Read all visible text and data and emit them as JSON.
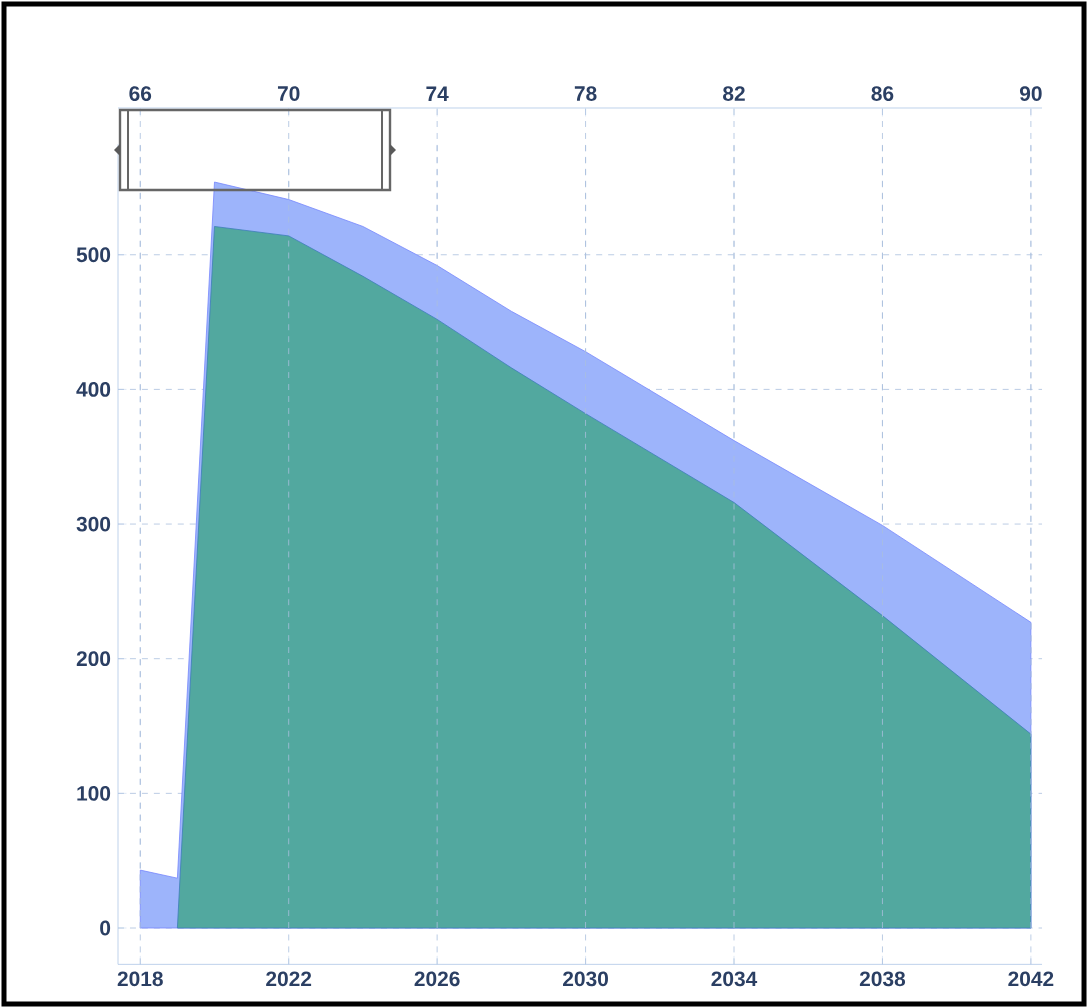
{
  "chart_data": {
    "type": "area",
    "x": [
      2018,
      2019,
      2020,
      2022,
      2024,
      2026,
      2028,
      2030,
      2034,
      2038,
      2042
    ],
    "series": [
      {
        "color": "#9db4fb",
        "values": [
          43,
          37,
          554,
          541,
          521,
          492,
          458,
          428,
          362,
          299,
          227
        ]
      },
      {
        "color": "#52a89f",
        "values": [
          null,
          0,
          521,
          514,
          484,
          452,
          416,
          382,
          316,
          232,
          144
        ]
      }
    ],
    "xlim": [
      2017.4,
      2042.3
    ],
    "xticks": [
      2018,
      2022,
      2026,
      2030,
      2034,
      2038,
      2042
    ],
    "x2lim": [
      65.4,
      90.3
    ],
    "x2ticks": [
      66,
      70,
      74,
      78,
      82,
      86,
      90
    ],
    "ylim": [
      -27,
      582
    ],
    "yticks": [
      0,
      100,
      200,
      300,
      400,
      500
    ],
    "grid": true
  }
}
